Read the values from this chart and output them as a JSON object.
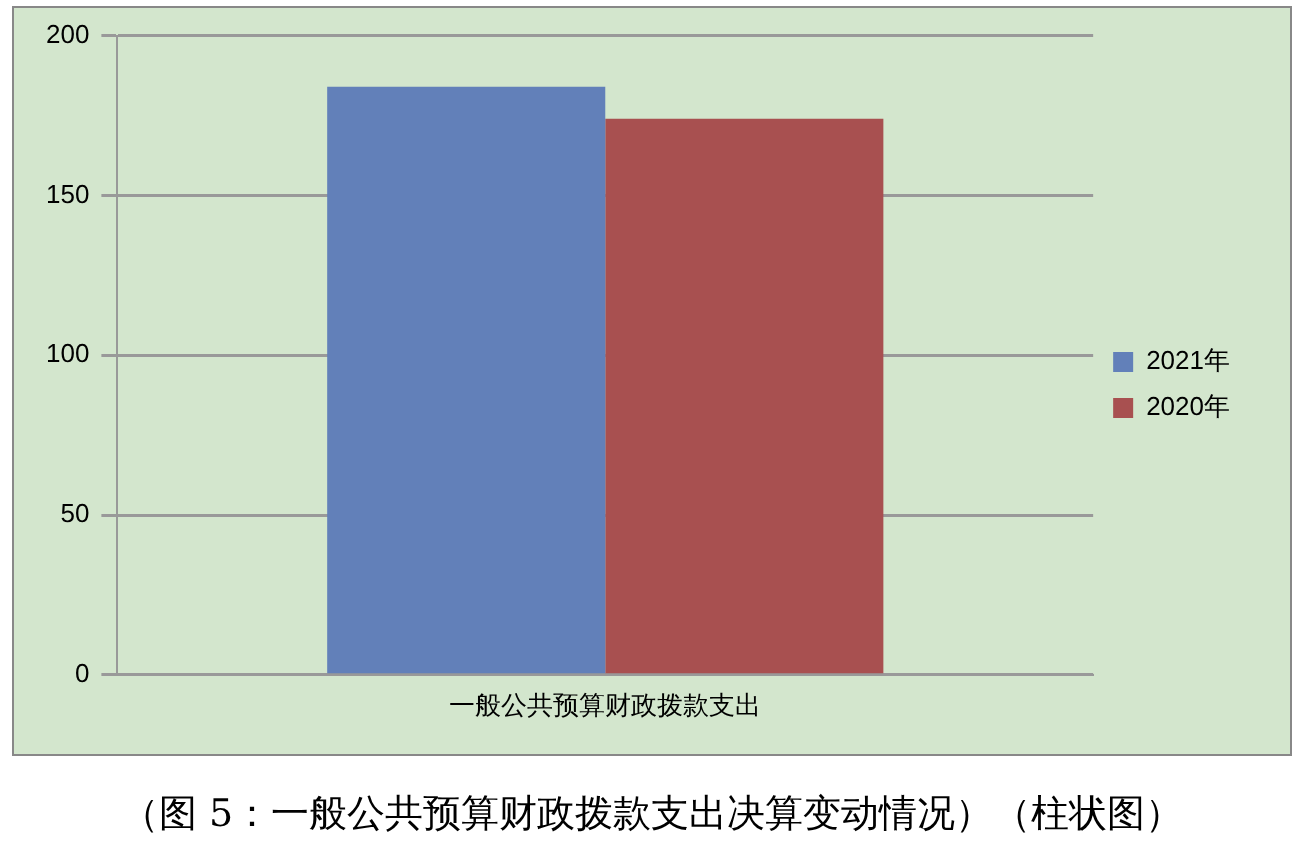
{
  "chart_data": {
    "type": "bar",
    "categories": [
      "一般公共预算财政拨款支出"
    ],
    "series": [
      {
        "name": "2021年",
        "color": "#6280b9",
        "values": [
          184
        ]
      },
      {
        "name": "2020年",
        "color": "#a85050",
        "values": [
          174
        ]
      }
    ],
    "ylim": [
      0,
      200
    ],
    "yticks": [
      0,
      50,
      100,
      150,
      200
    ],
    "grid": "y",
    "legend": "right",
    "annotations": [
      "（图 5：一般公共预算财政拨款支出决算变动情况）（柱状图）"
    ]
  }
}
